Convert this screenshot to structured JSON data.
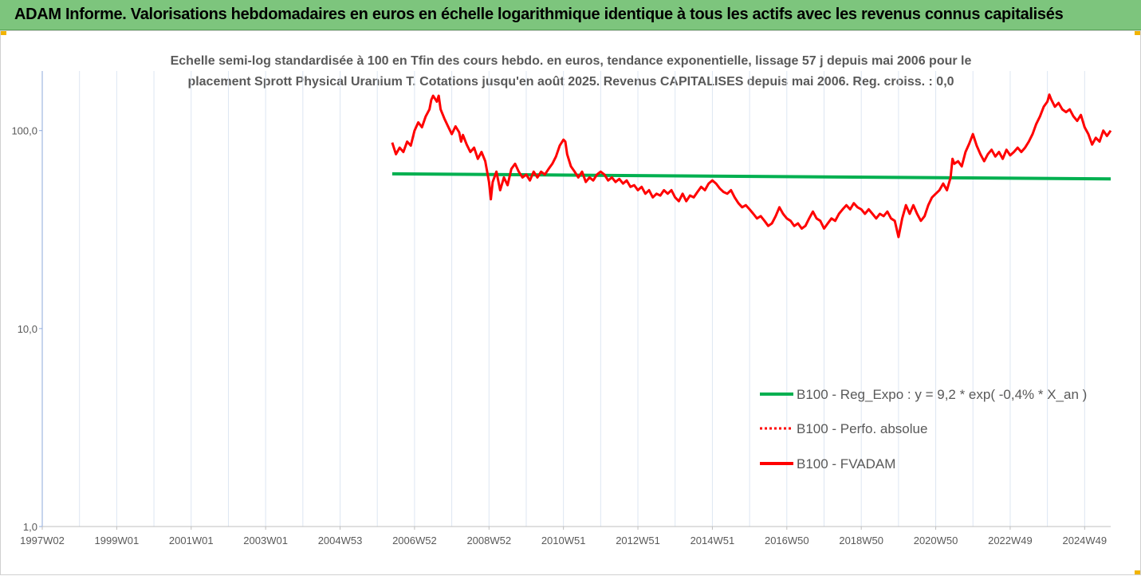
{
  "header": {
    "title": "ADAM Informe. Valorisations hebdomadaires en euros en échelle logarithmique identique à tous les actifs avec les revenus connus capitalisés",
    "bg_color": "#7dc57d",
    "corner_color": "#f2b400"
  },
  "chart_data": {
    "type": "line",
    "title_line1": "Echelle semi-log standardisée à 100 en Tfin des cours hebdo. en euros, tendance exponentielle, lissage 57 j depuis mai 2006 pour le",
    "title_line2": "placement Sprott Physical Uranium T. Cotations jusqu'en août 2025. Revenus CAPITALISES depuis mai 2006. Reg. croiss. : 0,0",
    "y_scale": "log",
    "ylim": [
      1,
      200
    ],
    "y_ticks": [
      {
        "value": 1,
        "label": "1,0"
      },
      {
        "value": 10,
        "label": "10,0"
      },
      {
        "value": 100,
        "label": "100,0"
      }
    ],
    "x_range": [
      1997.0,
      2025.7
    ],
    "x_ticks": [
      {
        "x": 1997.0,
        "label": "1997W02"
      },
      {
        "x": 1999.0,
        "label": "1999W01"
      },
      {
        "x": 2001.0,
        "label": "2001W01"
      },
      {
        "x": 2003.0,
        "label": "2003W01"
      },
      {
        "x": 2005.0,
        "label": "2004W53"
      },
      {
        "x": 2007.0,
        "label": "2006W52"
      },
      {
        "x": 2009.0,
        "label": "2008W52"
      },
      {
        "x": 2011.0,
        "label": "2010W51"
      },
      {
        "x": 2013.0,
        "label": "2012W51"
      },
      {
        "x": 2015.0,
        "label": "2014W51"
      },
      {
        "x": 2017.0,
        "label": "2016W50"
      },
      {
        "x": 2019.0,
        "label": "2018W50"
      },
      {
        "x": 2021.0,
        "label": "2020W50"
      },
      {
        "x": 2023.0,
        "label": "2022W49"
      },
      {
        "x": 2025.0,
        "label": "2024W49"
      }
    ],
    "grid": "vertical",
    "legend_position": "lower-right",
    "series": [
      {
        "name": "B100 - Reg_Expo : y = 9,2 * exp( -0,4% *  X_an )",
        "color": "#00b050",
        "style": "solid",
        "points": [
          [
            2006.4,
            60.5
          ],
          [
            2025.7,
            57.0
          ]
        ]
      },
      {
        "name": "B100 - Perfo. absolue",
        "color": "#ff0000",
        "style": "dotted",
        "points": []
      },
      {
        "name": "B100 - FVADAM",
        "color": "#ff0000",
        "style": "solid",
        "points": [
          [
            2006.4,
            87
          ],
          [
            2006.5,
            76
          ],
          [
            2006.6,
            82
          ],
          [
            2006.7,
            78
          ],
          [
            2006.8,
            88
          ],
          [
            2006.9,
            84
          ],
          [
            2007.0,
            100
          ],
          [
            2007.1,
            110
          ],
          [
            2007.2,
            104
          ],
          [
            2007.3,
            118
          ],
          [
            2007.4,
            128
          ],
          [
            2007.45,
            143
          ],
          [
            2007.5,
            150
          ],
          [
            2007.6,
            140
          ],
          [
            2007.65,
            150
          ],
          [
            2007.7,
            128
          ],
          [
            2007.8,
            115
          ],
          [
            2007.9,
            105
          ],
          [
            2008.0,
            96
          ],
          [
            2008.1,
            105
          ],
          [
            2008.2,
            98
          ],
          [
            2008.25,
            88
          ],
          [
            2008.3,
            95
          ],
          [
            2008.4,
            85
          ],
          [
            2008.5,
            78
          ],
          [
            2008.6,
            82
          ],
          [
            2008.7,
            72
          ],
          [
            2008.8,
            78
          ],
          [
            2008.9,
            70
          ],
          [
            2009.0,
            55
          ],
          [
            2009.05,
            45
          ],
          [
            2009.1,
            55
          ],
          [
            2009.2,
            62
          ],
          [
            2009.3,
            50
          ],
          [
            2009.4,
            58
          ],
          [
            2009.5,
            53
          ],
          [
            2009.6,
            64
          ],
          [
            2009.7,
            68
          ],
          [
            2009.8,
            62
          ],
          [
            2009.9,
            58
          ],
          [
            2010.0,
            60
          ],
          [
            2010.1,
            56
          ],
          [
            2010.2,
            62
          ],
          [
            2010.3,
            58
          ],
          [
            2010.4,
            62
          ],
          [
            2010.5,
            60
          ],
          [
            2010.6,
            64
          ],
          [
            2010.7,
            68
          ],
          [
            2010.8,
            74
          ],
          [
            2010.9,
            84
          ],
          [
            2011.0,
            90
          ],
          [
            2011.05,
            88
          ],
          [
            2011.1,
            76
          ],
          [
            2011.2,
            66
          ],
          [
            2011.3,
            62
          ],
          [
            2011.4,
            58
          ],
          [
            2011.5,
            62
          ],
          [
            2011.6,
            55
          ],
          [
            2011.7,
            58
          ],
          [
            2011.8,
            56
          ],
          [
            2011.9,
            60
          ],
          [
            2012.0,
            62
          ],
          [
            2012.1,
            60
          ],
          [
            2012.2,
            56
          ],
          [
            2012.3,
            58
          ],
          [
            2012.4,
            55
          ],
          [
            2012.5,
            57
          ],
          [
            2012.6,
            54
          ],
          [
            2012.7,
            56
          ],
          [
            2012.8,
            52
          ],
          [
            2012.9,
            53
          ],
          [
            2013.0,
            50
          ],
          [
            2013.1,
            52
          ],
          [
            2013.2,
            48
          ],
          [
            2013.3,
            50
          ],
          [
            2013.4,
            46
          ],
          [
            2013.5,
            48
          ],
          [
            2013.6,
            47
          ],
          [
            2013.7,
            50
          ],
          [
            2013.8,
            48
          ],
          [
            2013.9,
            50
          ],
          [
            2014.0,
            46
          ],
          [
            2014.1,
            44
          ],
          [
            2014.2,
            48
          ],
          [
            2014.3,
            44
          ],
          [
            2014.4,
            47
          ],
          [
            2014.5,
            46
          ],
          [
            2014.6,
            49
          ],
          [
            2014.7,
            52
          ],
          [
            2014.8,
            50
          ],
          [
            2014.9,
            54
          ],
          [
            2015.0,
            56
          ],
          [
            2015.1,
            54
          ],
          [
            2015.2,
            51
          ],
          [
            2015.3,
            49
          ],
          [
            2015.4,
            48
          ],
          [
            2015.5,
            50
          ],
          [
            2015.6,
            46
          ],
          [
            2015.7,
            43
          ],
          [
            2015.8,
            41
          ],
          [
            2015.9,
            42
          ],
          [
            2016.0,
            40
          ],
          [
            2016.1,
            38
          ],
          [
            2016.2,
            36
          ],
          [
            2016.3,
            37
          ],
          [
            2016.4,
            35
          ],
          [
            2016.5,
            33
          ],
          [
            2016.6,
            34
          ],
          [
            2016.7,
            37
          ],
          [
            2016.8,
            41
          ],
          [
            2016.9,
            38
          ],
          [
            2017.0,
            36
          ],
          [
            2017.1,
            35
          ],
          [
            2017.2,
            33
          ],
          [
            2017.3,
            34
          ],
          [
            2017.4,
            32
          ],
          [
            2017.5,
            33
          ],
          [
            2017.6,
            36
          ],
          [
            2017.7,
            39
          ],
          [
            2017.8,
            36
          ],
          [
            2017.9,
            35
          ],
          [
            2018.0,
            32
          ],
          [
            2018.1,
            34
          ],
          [
            2018.2,
            36
          ],
          [
            2018.3,
            35
          ],
          [
            2018.4,
            38
          ],
          [
            2018.5,
            40
          ],
          [
            2018.6,
            42
          ],
          [
            2018.7,
            40
          ],
          [
            2018.8,
            43
          ],
          [
            2018.9,
            41
          ],
          [
            2019.0,
            40
          ],
          [
            2019.1,
            38
          ],
          [
            2019.2,
            40
          ],
          [
            2019.3,
            38
          ],
          [
            2019.4,
            36
          ],
          [
            2019.5,
            38
          ],
          [
            2019.6,
            37
          ],
          [
            2019.7,
            39
          ],
          [
            2019.8,
            36
          ],
          [
            2019.9,
            35
          ],
          [
            2020.0,
            29
          ],
          [
            2020.1,
            36
          ],
          [
            2020.2,
            42
          ],
          [
            2020.3,
            38
          ],
          [
            2020.4,
            42
          ],
          [
            2020.5,
            38
          ],
          [
            2020.6,
            35
          ],
          [
            2020.7,
            37
          ],
          [
            2020.8,
            42
          ],
          [
            2020.9,
            46
          ],
          [
            2021.0,
            48
          ],
          [
            2021.1,
            50
          ],
          [
            2021.2,
            54
          ],
          [
            2021.3,
            50
          ],
          [
            2021.4,
            58
          ],
          [
            2021.45,
            72
          ],
          [
            2021.5,
            68
          ],
          [
            2021.6,
            70
          ],
          [
            2021.7,
            66
          ],
          [
            2021.8,
            78
          ],
          [
            2021.9,
            86
          ],
          [
            2022.0,
            96
          ],
          [
            2022.1,
            84
          ],
          [
            2022.2,
            76
          ],
          [
            2022.3,
            70
          ],
          [
            2022.4,
            76
          ],
          [
            2022.5,
            80
          ],
          [
            2022.6,
            74
          ],
          [
            2022.7,
            78
          ],
          [
            2022.8,
            72
          ],
          [
            2022.9,
            80
          ],
          [
            2023.0,
            75
          ],
          [
            2023.1,
            78
          ],
          [
            2023.2,
            82
          ],
          [
            2023.3,
            78
          ],
          [
            2023.4,
            82
          ],
          [
            2023.5,
            88
          ],
          [
            2023.6,
            96
          ],
          [
            2023.7,
            108
          ],
          [
            2023.8,
            118
          ],
          [
            2023.9,
            132
          ],
          [
            2024.0,
            140
          ],
          [
            2024.05,
            152
          ],
          [
            2024.1,
            144
          ],
          [
            2024.2,
            132
          ],
          [
            2024.3,
            138
          ],
          [
            2024.4,
            128
          ],
          [
            2024.5,
            124
          ],
          [
            2024.6,
            128
          ],
          [
            2024.7,
            118
          ],
          [
            2024.8,
            112
          ],
          [
            2024.9,
            120
          ],
          [
            2025.0,
            104
          ],
          [
            2025.1,
            96
          ],
          [
            2025.2,
            85
          ],
          [
            2025.3,
            92
          ],
          [
            2025.4,
            88
          ],
          [
            2025.5,
            100
          ],
          [
            2025.6,
            94
          ],
          [
            2025.7,
            100
          ]
        ]
      }
    ]
  }
}
